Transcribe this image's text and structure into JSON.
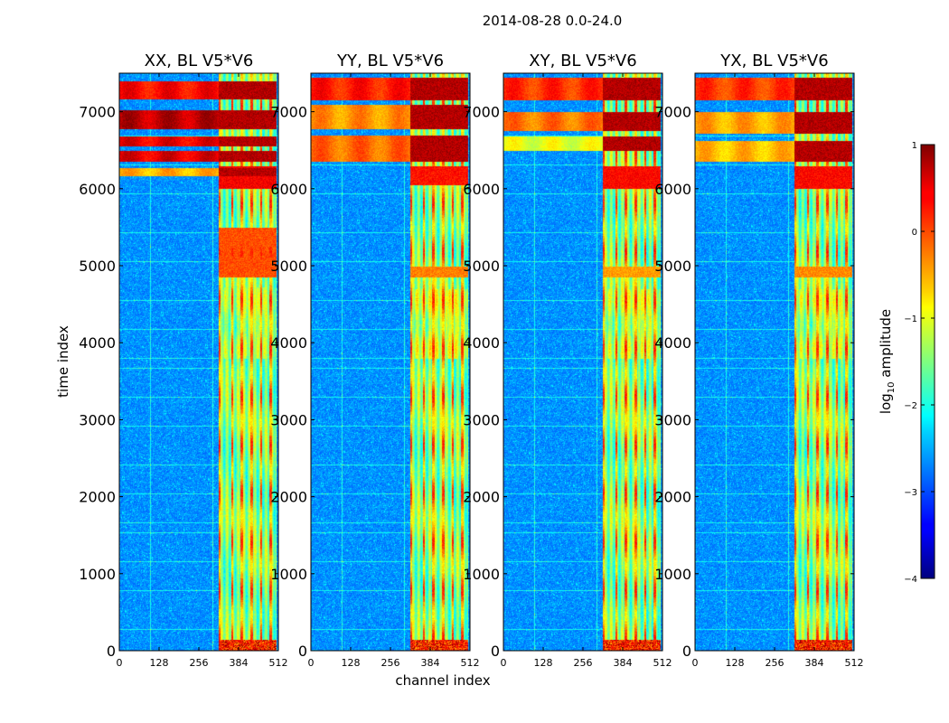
{
  "chart_data": {
    "type": "heatmap",
    "suptitle": "2014-08-28 0.0-24.0",
    "xlabel": "channel index",
    "ylabel": "time index",
    "xlim": [
      0,
      512
    ],
    "ylim": [
      0,
      7500
    ],
    "xticks": [
      0,
      128,
      256,
      384,
      512
    ],
    "yticks": [
      0,
      1000,
      2000,
      3000,
      4000,
      5000,
      6000,
      7000
    ],
    "colormap": "jet",
    "colorbar": {
      "label": "log10 amplitude",
      "label_prefix": "log",
      "label_sub": "10",
      "label_suffix": " amplitude",
      "range": [
        -4,
        1
      ],
      "ticks": [
        "1",
        "0",
        "−1",
        "−2",
        "−3",
        "−4"
      ]
    },
    "panels": [
      {
        "title": "XX, BL V5*V6",
        "band_start": 320,
        "band_end": 505,
        "stripes": [
          320,
          362,
          393,
          424,
          455,
          486
        ],
        "bright_rows": [
          [
            6170,
            6270,
            0.73
          ],
          [
            6350,
            6500,
            0.93
          ],
          [
            6560,
            6690,
            0.92
          ],
          [
            6780,
            7020,
            0.97
          ],
          [
            7170,
            7400,
            0.9
          ]
        ],
        "mid_rows": [
          [
            3800,
            4720,
            0.5
          ]
        ],
        "red_rows": [
          [
            4850,
            5500,
            0.8
          ],
          [
            6000,
            6300,
            0.88
          ]
        ]
      },
      {
        "title": "YY, BL V5*V6",
        "band_start": 320,
        "band_end": 505,
        "stripes": [
          320,
          362,
          393,
          424,
          455,
          486
        ],
        "bright_rows": [
          [
            6360,
            6700,
            0.8
          ],
          [
            6780,
            7100,
            0.76
          ],
          [
            7150,
            7450,
            0.88
          ]
        ],
        "mid_rows": [
          [
            3800,
            4700,
            0.55
          ]
        ],
        "red_rows": [
          [
            4850,
            5000,
            0.75
          ],
          [
            6050,
            6300,
            0.86
          ]
        ]
      },
      {
        "title": "XY, BL V5*V6",
        "band_start": 320,
        "band_end": 505,
        "stripes": [
          320,
          362,
          393,
          424,
          455,
          486
        ],
        "bright_rows": [
          [
            6500,
            6680,
            0.63
          ],
          [
            6750,
            7000,
            0.79
          ],
          [
            7150,
            7450,
            0.86
          ]
        ],
        "mid_rows": [
          [
            3800,
            4700,
            0.52
          ]
        ],
        "red_rows": [
          [
            4850,
            5000,
            0.72
          ],
          [
            6000,
            6300,
            0.87
          ]
        ]
      },
      {
        "title": "YX, BL V5*V6",
        "band_start": 320,
        "band_end": 505,
        "stripes": [
          320,
          362,
          393,
          424,
          455,
          486
        ],
        "bright_rows": [
          [
            6350,
            6620,
            0.72
          ],
          [
            6720,
            7000,
            0.74
          ],
          [
            7150,
            7450,
            0.85
          ]
        ],
        "mid_rows": [
          [
            3800,
            4700,
            0.52
          ]
        ],
        "red_rows": [
          [
            4850,
            5000,
            0.74
          ],
          [
            6000,
            6300,
            0.87
          ]
        ]
      }
    ]
  }
}
